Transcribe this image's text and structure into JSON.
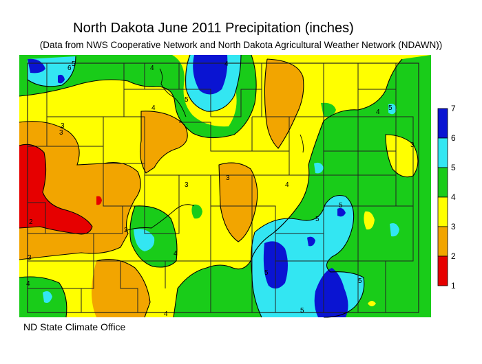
{
  "title": "North Dakota June 2011 Precipitation (inches)",
  "subtitle": "(Data from NWS Cooperative Network and North Dakota Agricultural Weather Network (NDAWN))",
  "credit": "ND State Climate Office",
  "legend": {
    "labels": [
      "7",
      "6",
      "5",
      "4",
      "3",
      "2",
      "1"
    ],
    "bins": [
      {
        "range": "6-7",
        "color": "#0a14d2"
      },
      {
        "range": "5-6",
        "color": "#33e6f2"
      },
      {
        "range": "4-5",
        "color": "#19cc19"
      },
      {
        "range": "3-4",
        "color": "#ffff00"
      },
      {
        "range": "2-3",
        "color": "#f2a500"
      },
      {
        "range": "1-2",
        "color": "#e60000"
      }
    ]
  },
  "contour_labels": [
    "6",
    "5",
    "4",
    "4",
    "3",
    "2",
    "3",
    "3",
    "4",
    "5",
    "4",
    "5",
    "4",
    "5",
    "3",
    "3",
    "4",
    "5",
    "3",
    "4",
    "5",
    "5",
    "4",
    "3",
    "5"
  ]
}
